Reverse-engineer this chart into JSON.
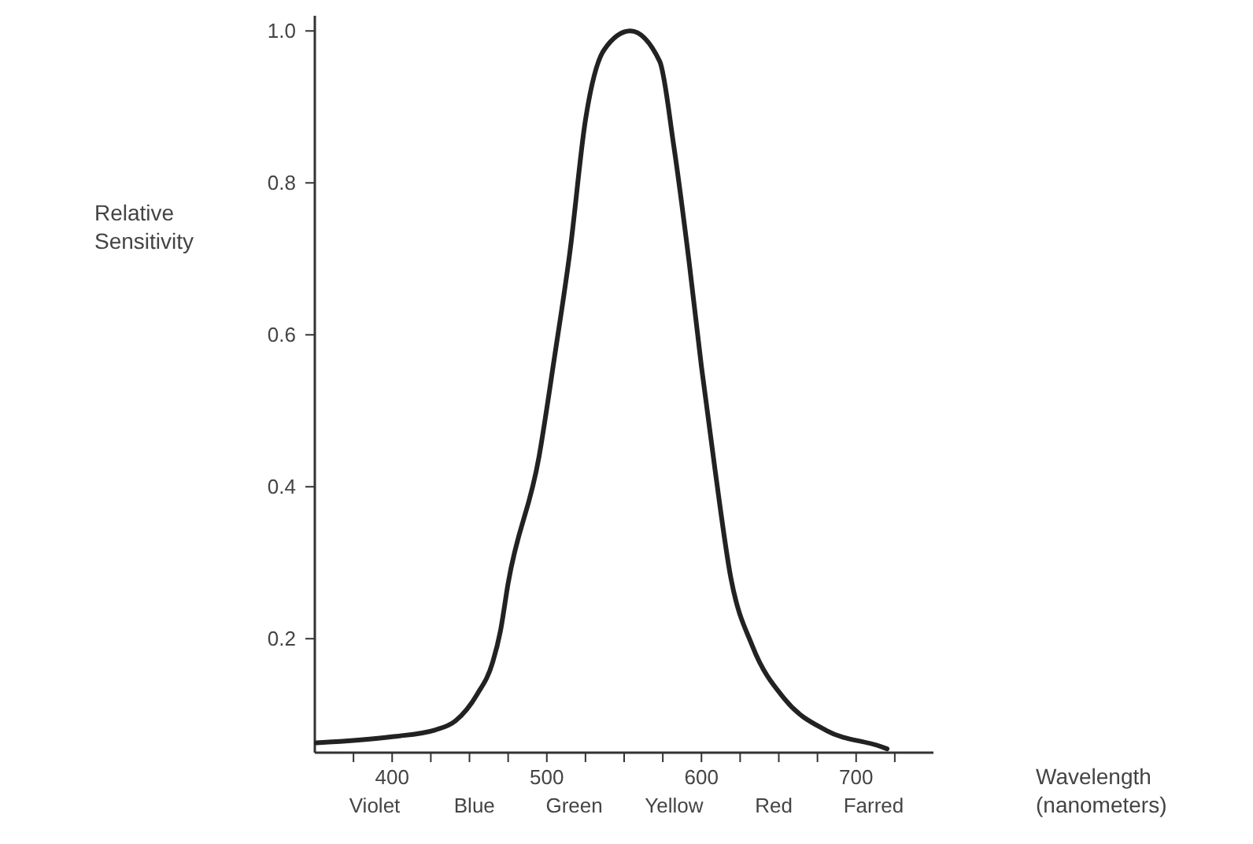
{
  "chart_data": {
    "type": "line",
    "ylabel": "Relative Sensitivity",
    "xlabel": "Wavelength (nanometers)",
    "xlim": [
      350,
      750
    ],
    "xticks": [
      {
        "value": 375,
        "label": null
      },
      400,
      {
        "value": 425,
        "label": null
      },
      {
        "value": 450,
        "label": null
      },
      {
        "value": 475,
        "label": null
      },
      500,
      {
        "value": 525,
        "label": null
      },
      {
        "value": 550,
        "label": null
      },
      {
        "value": 575,
        "label": null
      },
      600,
      {
        "value": 625,
        "label": null
      },
      {
        "value": 650,
        "label": null
      },
      {
        "value": 675,
        "label": null
      },
      700,
      {
        "value": 725,
        "label": null
      }
    ],
    "annotations": [
      "Violet",
      "Blue",
      "Green",
      "Yellow",
      "Red",
      "Farred"
    ],
    "ylim": [
      0.05,
      1.02
    ],
    "yticks": [
      0.2,
      0.4,
      0.6,
      0.8,
      {
        "value": 1,
        "label": "1.0"
      }
    ],
    "grid": false,
    "marker": "none",
    "line_style": "solid",
    "series": [
      {
        "color": "#222222",
        "x": [
          351,
          400,
          428,
          441,
          455,
          465,
          470,
          475,
          495,
          505,
          515,
          525,
          537,
          554,
          573,
          582,
          592,
          600,
          609,
          619,
          633,
          654,
          681,
          716,
          720
        ],
        "values": [
          0.063,
          0.071,
          0.08,
          0.092,
          0.127,
          0.169,
          0.21,
          0.273,
          0.44,
          0.571,
          0.71,
          0.883,
          0.975,
          1.0,
          0.96,
          0.85,
          0.696,
          0.558,
          0.419,
          0.28,
          0.19,
          0.12,
          0.079,
          0.058,
          0.055
        ]
      }
    ]
  }
}
